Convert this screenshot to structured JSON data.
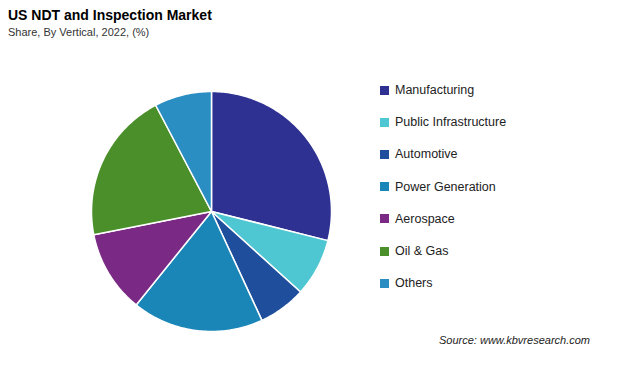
{
  "chart_data": {
    "type": "pie",
    "title": "US NDT and Inspection Market",
    "subtitle": "Share, By Vertical, 2022, (%)",
    "source": "Source: www.kbvresearch.com",
    "categories": [
      "Manufacturing",
      "Public Infrastructure",
      "Automotive",
      "Power Generation",
      "Aerospace",
      "Oil & Gas",
      "Others"
    ],
    "values": [
      28.9,
      7.8,
      6.4,
      17.7,
      11.1,
      20.4,
      7.7
    ],
    "colors": [
      "#2e3192",
      "#4ec7d2",
      "#1f4f9c",
      "#1a86b8",
      "#7a2a84",
      "#4b8f2b",
      "#2a8ec2"
    ],
    "legend": "right"
  }
}
